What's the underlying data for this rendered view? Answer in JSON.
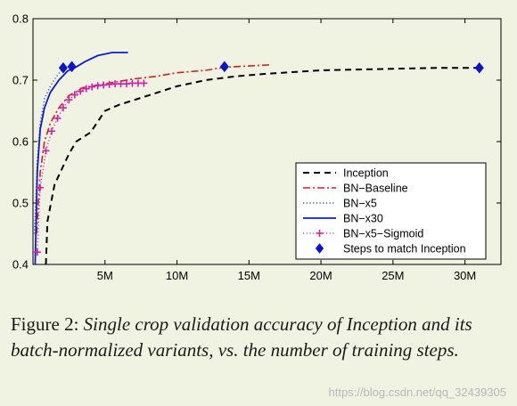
{
  "chart_data": {
    "type": "line",
    "x_ticks": [
      {
        "v": 5,
        "label": "5M"
      },
      {
        "v": 10,
        "label": "10M"
      },
      {
        "v": 15,
        "label": "15M"
      },
      {
        "v": 20,
        "label": "20M"
      },
      {
        "v": 25,
        "label": "25M"
      },
      {
        "v": 30,
        "label": "30M"
      }
    ],
    "y_ticks": [
      0.4,
      0.5,
      0.6,
      0.7,
      0.8
    ],
    "xlim": [
      0,
      32.5
    ],
    "ylim": [
      0.4,
      0.8
    ],
    "legend_position": "lower-right",
    "series": [
      {
        "name": "Inception",
        "color": "#000000",
        "style": "dashed",
        "points": [
          [
            0.9,
            0.4
          ],
          [
            1.0,
            0.47
          ],
          [
            1.5,
            0.53
          ],
          [
            2,
            0.555
          ],
          [
            2.5,
            0.58
          ],
          [
            3,
            0.6
          ],
          [
            4,
            0.615
          ],
          [
            5,
            0.65
          ],
          [
            6,
            0.66
          ],
          [
            8,
            0.675
          ],
          [
            10,
            0.69
          ],
          [
            12,
            0.7
          ],
          [
            14,
            0.706
          ],
          [
            16,
            0.71
          ],
          [
            18,
            0.713
          ],
          [
            20,
            0.716
          ],
          [
            22,
            0.717
          ],
          [
            24,
            0.718
          ],
          [
            26,
            0.719
          ],
          [
            28,
            0.72
          ],
          [
            31,
            0.72
          ]
        ]
      },
      {
        "name": "BN−Baseline",
        "color": "#d42020",
        "style": "dashdot",
        "points": [
          [
            0.25,
            0.45
          ],
          [
            0.5,
            0.55
          ],
          [
            0.8,
            0.6
          ],
          [
            1.2,
            0.63
          ],
          [
            1.8,
            0.655
          ],
          [
            2.5,
            0.675
          ],
          [
            3.5,
            0.688
          ],
          [
            5,
            0.694
          ],
          [
            6,
            0.698
          ],
          [
            7,
            0.702
          ],
          [
            8.5,
            0.706
          ],
          [
            10,
            0.712
          ],
          [
            12,
            0.716
          ],
          [
            13.3,
            0.721
          ],
          [
            15,
            0.723
          ],
          [
            16.5,
            0.725
          ]
        ]
      },
      {
        "name": "BN−x5",
        "color": "#3050d0",
        "style": "dotted",
        "points": [
          [
            0.1,
            0.45
          ],
          [
            0.3,
            0.57
          ],
          [
            0.5,
            0.63
          ],
          [
            0.8,
            0.67
          ],
          [
            1.2,
            0.69
          ],
          [
            1.6,
            0.705
          ],
          [
            2.1,
            0.72
          ]
        ]
      },
      {
        "name": "BN−x30",
        "color": "#0a1ed8",
        "style": "solid",
        "points": [
          [
            0.15,
            0.4
          ],
          [
            0.3,
            0.55
          ],
          [
            0.5,
            0.62
          ],
          [
            0.8,
            0.655
          ],
          [
            1.2,
            0.68
          ],
          [
            1.8,
            0.7
          ],
          [
            2.4,
            0.715
          ],
          [
            2.9,
            0.72
          ],
          [
            3.6,
            0.73
          ],
          [
            4.5,
            0.74
          ],
          [
            5.5,
            0.745
          ],
          [
            6.6,
            0.745
          ]
        ]
      },
      {
        "name": "BN−x5−Sigmoid",
        "color": "#d020b0",
        "style": "dotted-plus",
        "points": [
          [
            0.3,
            0.42
          ],
          [
            0.5,
            0.525
          ],
          [
            0.9,
            0.585
          ],
          [
            1.3,
            0.617
          ],
          [
            1.7,
            0.638
          ],
          [
            2.1,
            0.655
          ],
          [
            2.5,
            0.668
          ],
          [
            2.9,
            0.676
          ],
          [
            3.3,
            0.682
          ],
          [
            3.7,
            0.686
          ],
          [
            4.1,
            0.689
          ],
          [
            4.5,
            0.691
          ],
          [
            4.9,
            0.692
          ],
          [
            5.3,
            0.693
          ],
          [
            5.7,
            0.694
          ],
          [
            6.1,
            0.694
          ],
          [
            6.5,
            0.694
          ],
          [
            6.9,
            0.695
          ],
          [
            7.3,
            0.695
          ],
          [
            7.7,
            0.695
          ]
        ]
      },
      {
        "name": "Steps to match Inception",
        "color": "#0a14c8",
        "style": "diamond-markers",
        "points": [
          [
            2.1,
            0.72
          ],
          [
            2.7,
            0.722
          ],
          [
            13.3,
            0.722
          ],
          [
            31,
            0.72
          ]
        ]
      }
    ]
  },
  "caption": {
    "label": "Figure 2:",
    "text": "Single crop validation accuracy of Inception and its batch-normalized variants, vs.  the number of training steps."
  },
  "watermark": "https://blog.csdn.net/qq_32439305"
}
